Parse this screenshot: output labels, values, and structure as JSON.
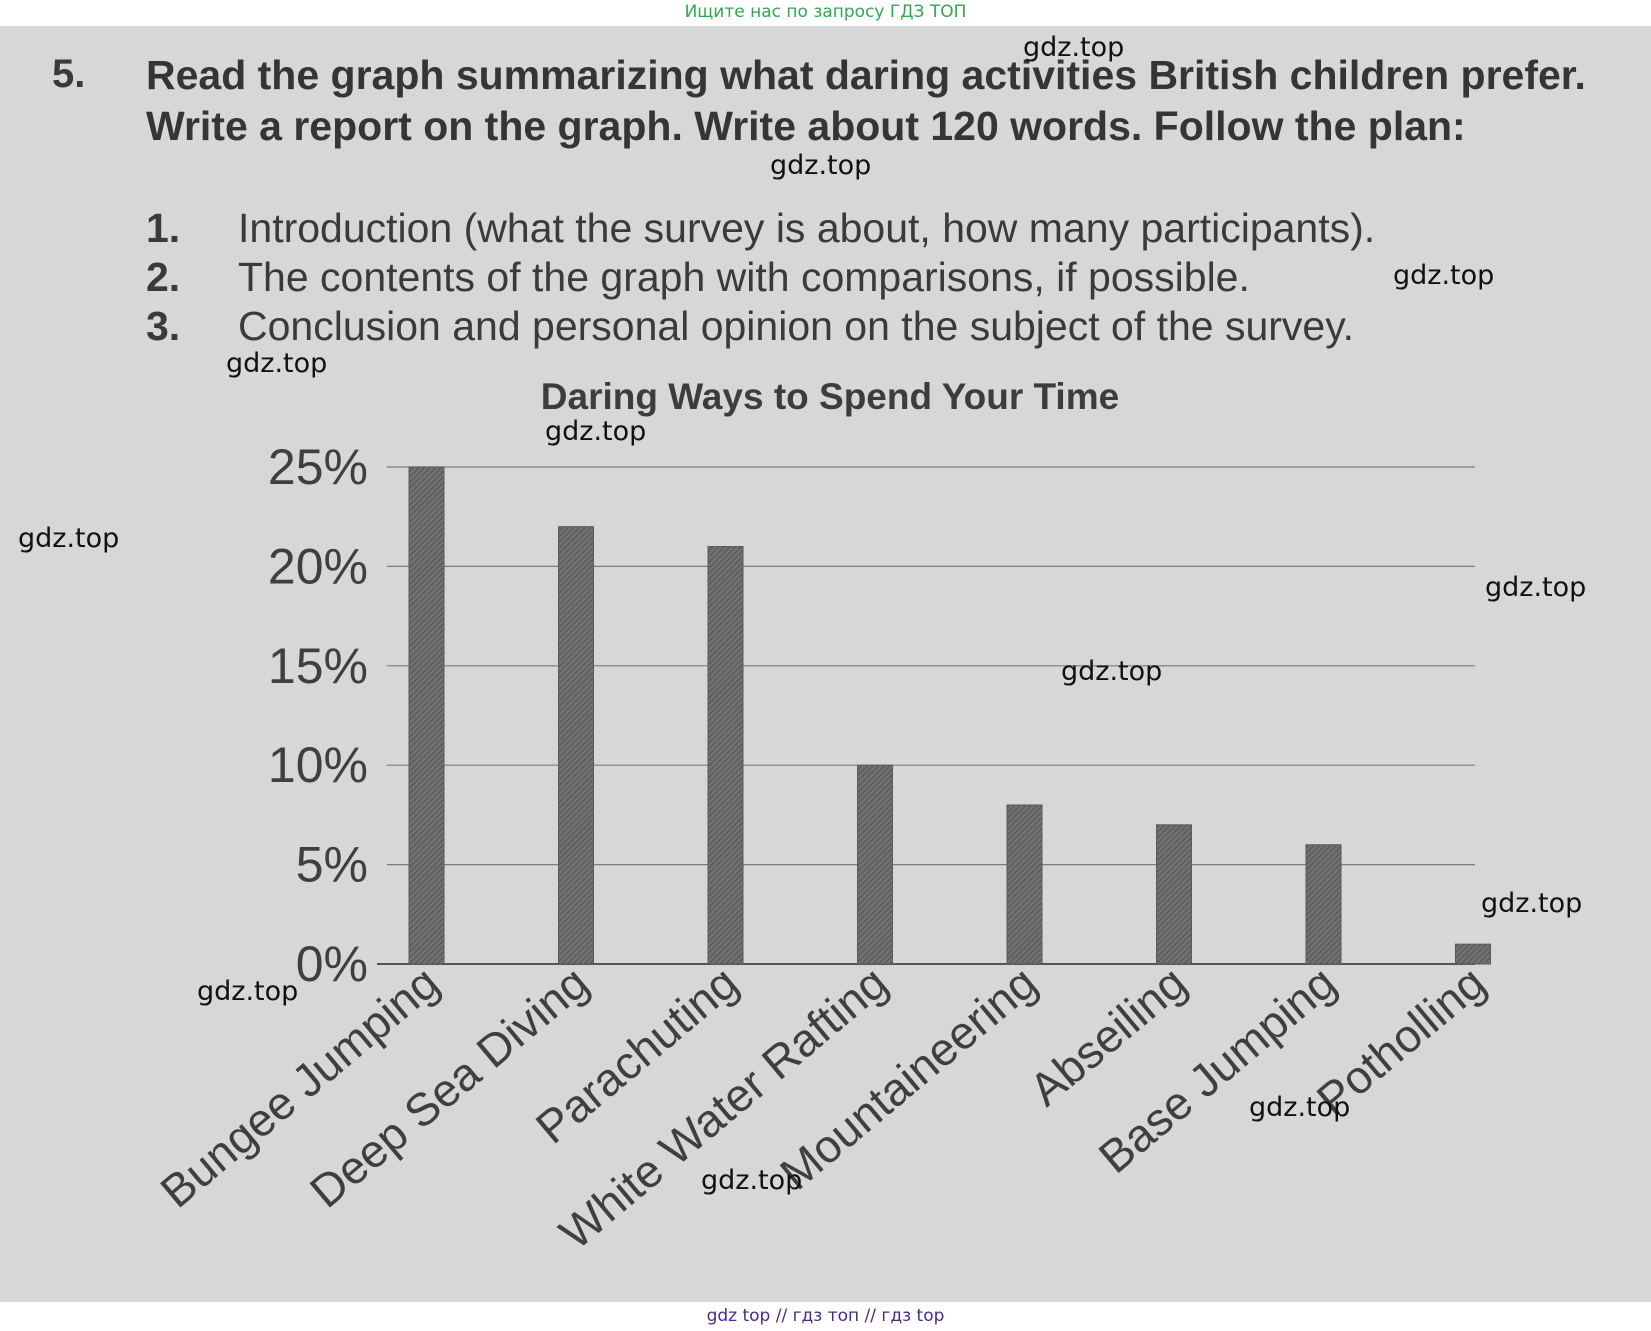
{
  "banner": {
    "text": "Ищите нас по запросу ГДЗ ТОП",
    "color": "#2fa84f"
  },
  "task": {
    "number": "5.",
    "heading": "Read the graph summarizing what daring activities British children prefer. Write a report on the graph. Write about 120 words. Follow the plan:",
    "plan": [
      {
        "num": "1.",
        "text": "Introduction (what the survey is about, how many participants)."
      },
      {
        "num": "2.",
        "text": "The contents of the graph with comparisons, if possible."
      },
      {
        "num": "3.",
        "text": "Conclusion and personal opinion on the subject of the survey."
      }
    ]
  },
  "chart_data": {
    "type": "bar",
    "title": "Daring Ways to Spend Your Time",
    "xlabel": "",
    "ylabel": "",
    "categories": [
      "Bungee Jumping",
      "Deep Sea Diving",
      "Parachuting",
      "White Water Rafting",
      "Mountaineering",
      "Abseiling",
      "Base Jumping",
      "Potholling"
    ],
    "values": [
      25,
      22,
      21,
      10,
      8,
      7,
      6,
      1
    ],
    "ylim": [
      0,
      25
    ],
    "yticks": [
      "0%",
      "5%",
      "10%",
      "15%",
      "20%",
      "25%"
    ],
    "grid": true,
    "bar_color": "#6a6a6a"
  },
  "watermarks": [
    "gdz.top",
    "gdz.top",
    "gdz.top",
    "gdz.top",
    "gdz.top",
    "gdz.top",
    "gdz.top",
    "gdz.top",
    "gdz.top",
    "gdz.top",
    "gdz.top",
    "gdz.top"
  ],
  "footer": {
    "text": "gdz top  //  гдз топ  //  гдз top",
    "color": "#4b2a8a"
  }
}
